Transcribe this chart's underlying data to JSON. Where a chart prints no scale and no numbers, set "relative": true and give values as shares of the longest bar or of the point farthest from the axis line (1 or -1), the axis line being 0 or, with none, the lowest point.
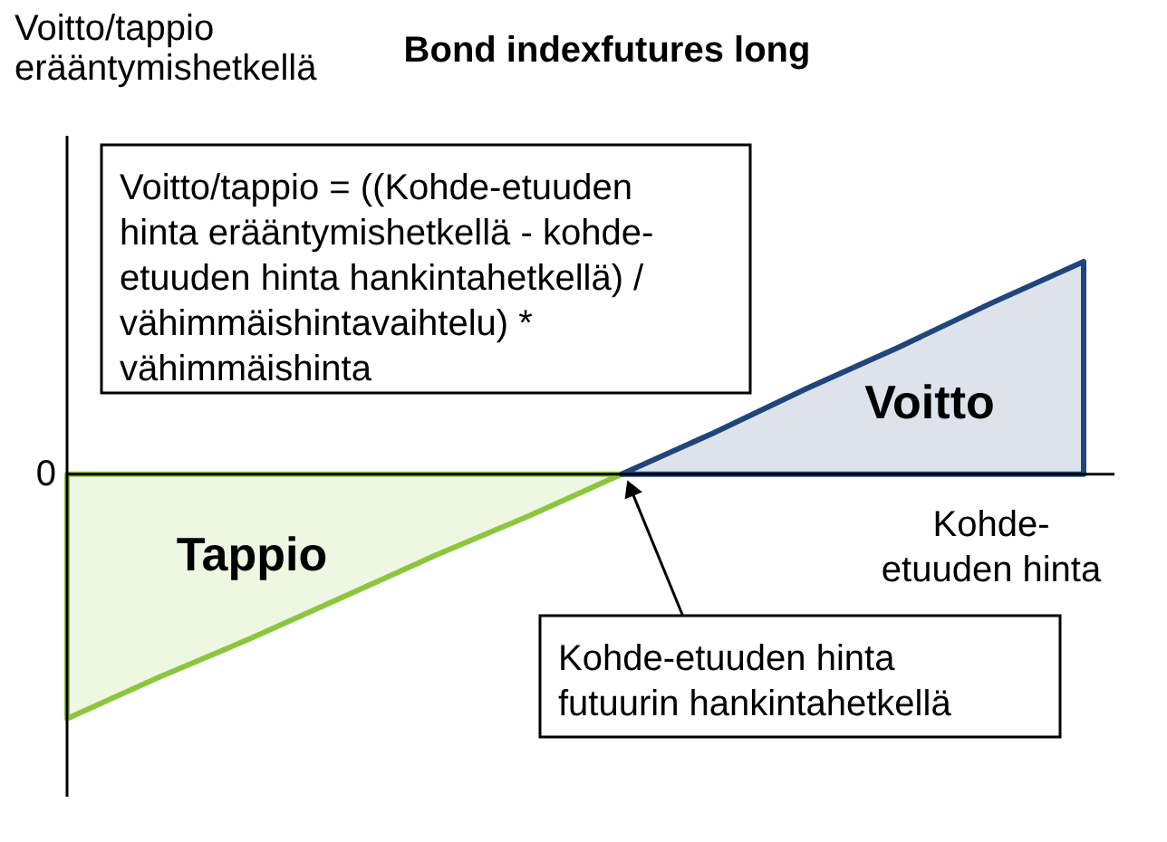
{
  "chart_data": {
    "type": "area",
    "title": "Bond indexfutures long",
    "xlabel": "Kohde-etuuden hinta",
    "relative": true,
    "categories": [
      null,
      null,
      null,
      null,
      null,
      null,
      null,
      null,
      null,
      null,
      null,
      null
    ],
    "series": [
      {
        "name": "Tappio",
        "color": "#8cc63e",
        "values": [
          -1,
          -0.83,
          -0.67,
          -0.5,
          -0.33,
          -0.17,
          0,
          null,
          null,
          null,
          null,
          null
        ]
      },
      {
        "name": "Voitto",
        "color": "#1f4579",
        "values": [
          null,
          null,
          null,
          null,
          null,
          null,
          0,
          0.17,
          0.35,
          0.52,
          0.7,
          0.87
        ]
      }
    ],
    "annotations": [
      "Voitto/tappio erääntymishetkellä",
      "Voitto/tappio = ((Kohde-etuuden hinta erääntymishetkellä - kohde-etuuden hinta hankintahetkellä) / vähimmäishintavaihtelu) * vähimmäishinta",
      "Kohde-etuuden hinta futuurin hankintahetkellä",
      "0"
    ]
  }
}
